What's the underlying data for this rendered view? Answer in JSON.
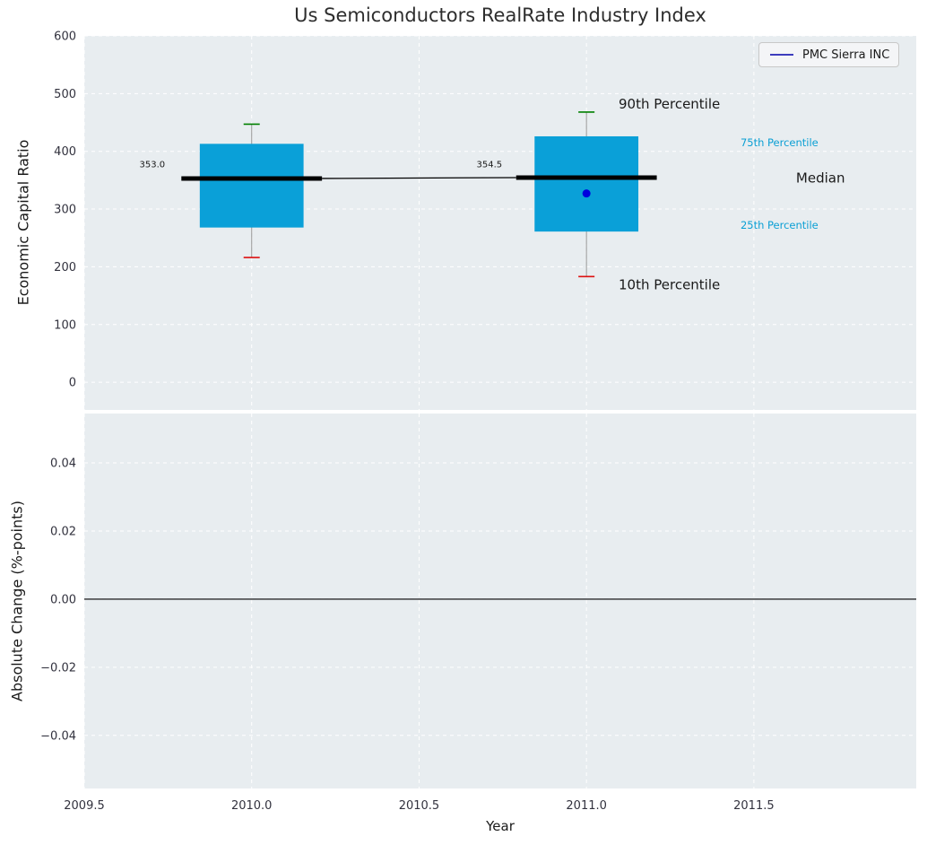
{
  "title": "Us Semiconductors RealRate Industry Index",
  "legend": {
    "label": "PMC Sierra INC"
  },
  "xlabel": "Year",
  "chart_data": {
    "type": "box",
    "x_ticks": [
      2009.5,
      2010.0,
      2010.5,
      2011.0,
      2011.5
    ],
    "x_tick_labels": [
      "2009.5",
      "2010.0",
      "2010.5",
      "2011.0",
      "2011.5"
    ],
    "xlim": [
      2009.5,
      2011.985
    ],
    "box_half_width": 0.155,
    "median_half_width": 0.21,
    "panels": [
      {
        "name": "economic-capital-ratio",
        "ylabel": "Economic Capital Ratio",
        "y_ticks": [
          0,
          100,
          200,
          300,
          400,
          500,
          600
        ],
        "y_tick_labels": [
          "0",
          "100",
          "200",
          "300",
          "400",
          "500",
          "600"
        ],
        "ylim": [
          -48,
          600
        ],
        "boxes": [
          {
            "year": 2010,
            "median": 353.0,
            "median_label": "353.0",
            "q1": 268,
            "q3": 413,
            "p10": 216,
            "p90": 447
          },
          {
            "year": 2011,
            "median": 354.5,
            "median_label": "354.5",
            "q1": 261,
            "q3": 426,
            "p10": 183,
            "p90": 468
          }
        ],
        "series": [
          {
            "name": "PMC Sierra INC",
            "points": [
              {
                "year": 2011,
                "value": 327
              }
            ]
          }
        ],
        "annotations": [
          {
            "text": "353.0",
            "year": 2009.703,
            "value": 378,
            "anchor": "middle",
            "size": 10,
            "color": "#1a1a1a"
          },
          {
            "text": "354.5",
            "year": 2010.71,
            "value": 378,
            "anchor": "middle",
            "size": 10,
            "color": "#1a1a1a"
          },
          {
            "text": "90th Percentile",
            "year": 2011.096,
            "value": 482,
            "anchor": "start",
            "size": 15,
            "color": "#1a1a1a"
          },
          {
            "text": "75th Percentile",
            "year": 2011.46,
            "value": 415,
            "anchor": "start",
            "size": 11.5,
            "color": "#0a9fd4"
          },
          {
            "text": "Median",
            "year": 2011.626,
            "value": 354,
            "anchor": "start",
            "size": 15,
            "color": "#1a1a1a"
          },
          {
            "text": "25th Percentile",
            "year": 2011.46,
            "value": 272,
            "anchor": "start",
            "size": 11.5,
            "color": "#0a9fd4"
          },
          {
            "text": "10th Percentile",
            "year": 2011.096,
            "value": 169,
            "anchor": "start",
            "size": 15,
            "color": "#1a1a1a"
          }
        ]
      },
      {
        "name": "absolute-change",
        "ylabel": "Absolute Change (%-points)",
        "y_ticks": [
          0.04,
          0.02,
          0.0,
          -0.02,
          -0.04
        ],
        "y_tick_labels": [
          "0.04",
          "0.02",
          "0.00",
          "−0.02",
          "−0.04"
        ],
        "ylim": [
          -0.0556,
          0.0545
        ],
        "zero_line": 0.0
      }
    ],
    "colors": {
      "box_fill": "#0aa0d8",
      "median": "#000000",
      "whisker": "#999999",
      "cap_high": "#008000",
      "cap_low": "#dd1111",
      "marker": "#0000dd",
      "legend_line": "#0000aa",
      "panel_bg": "#e8edf0",
      "grid": "#ffffff",
      "tick_text": "#32323e"
    }
  }
}
